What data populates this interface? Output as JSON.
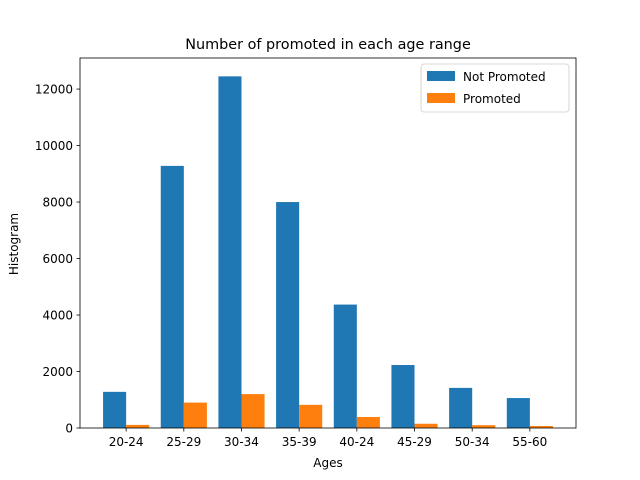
{
  "chart_data": {
    "type": "bar",
    "title": "Number of promoted in each age range",
    "xlabel": "Ages",
    "ylabel": "Histogram",
    "categories": [
      "20-24",
      "25-29",
      "30-34",
      "35-39",
      "40-24",
      "45-29",
      "50-34",
      "55-60"
    ],
    "series": [
      {
        "name": "Not Promoted",
        "color": "#1f77b4",
        "values": [
          1280,
          9280,
          12450,
          8000,
          4370,
          2230,
          1420,
          1060
        ]
      },
      {
        "name": "Promoted",
        "color": "#ff7f0e",
        "values": [
          110,
          900,
          1200,
          820,
          390,
          150,
          100,
          70
        ]
      }
    ],
    "ylim": [
      0,
      13100
    ],
    "yticks": [
      0,
      2000,
      4000,
      6000,
      8000,
      10000,
      12000
    ],
    "legend_position": "top-right",
    "grid": false
  }
}
